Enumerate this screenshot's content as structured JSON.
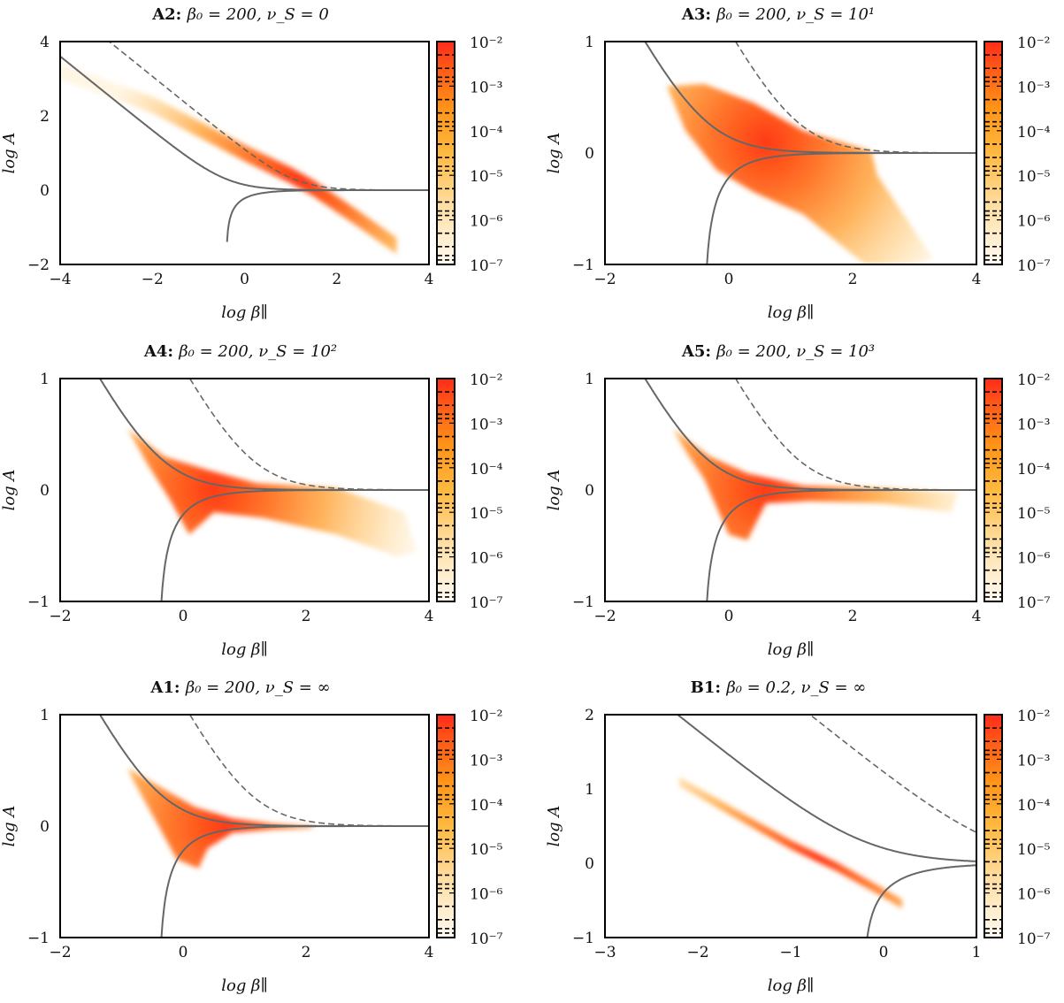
{
  "chart_data": [
    {
      "type": "heatmap",
      "panel": "A2",
      "title_bold": "A2:",
      "title_rest": "β₀ = 200,  ν_S = 0",
      "xlabel": "log β∥",
      "ylabel": "log A",
      "xlim": [
        -4,
        4
      ],
      "ylim": [
        -2,
        4
      ],
      "xticks": [
        -4,
        -2,
        0,
        2,
        4
      ],
      "yticks": [
        -2,
        0,
        2,
        4
      ],
      "beta0": 200,
      "color_scale": {
        "min_exp": -7,
        "max_exp": -2,
        "labels": [
          "10⁻²",
          "10⁻³",
          "10⁻⁴",
          "10⁻⁵",
          "10⁻⁶",
          "10⁻⁷"
        ]
      },
      "distribution": [
        {
          "x": [
            -4.0,
            -2.0,
            0.0,
            1.0,
            1.5,
            2.5,
            3.3
          ],
          "y": [
            3.2,
            2.3,
            1.0,
            0.4,
            0.05,
            -0.8,
            -1.5
          ],
          "halfwidth": 0.22,
          "peak_x": 1.2
        }
      ]
    },
    {
      "type": "heatmap",
      "panel": "A3",
      "title_bold": "A3:",
      "title_rest": "β₀ = 200,  ν_S = 10¹",
      "xlabel": "log β∥",
      "ylabel": "log A",
      "xlim": [
        -2,
        4
      ],
      "ylim": [
        -1,
        1
      ],
      "xticks": [
        -2,
        0,
        2,
        4
      ],
      "yticks": [
        -1,
        0,
        1
      ],
      "beta0": 200,
      "color_scale": {
        "min_exp": -7,
        "max_exp": -2,
        "labels": [
          "10⁻²",
          "10⁻³",
          "10⁻⁴",
          "10⁻⁵",
          "10⁻⁶",
          "10⁻⁷"
        ]
      },
      "distribution": [
        {
          "outline": [
            [
              -1.0,
              0.6
            ],
            [
              -0.4,
              0.62
            ],
            [
              0.4,
              0.45
            ],
            [
              1.2,
              0.2
            ],
            [
              2.3,
              0.02
            ],
            [
              2.4,
              -0.2
            ],
            [
              3.3,
              -0.95
            ],
            [
              3.0,
              -1.0
            ],
            [
              2.2,
              -1.0
            ],
            [
              1.2,
              -0.55
            ],
            [
              0.4,
              -0.35
            ],
            [
              -0.2,
              -0.15
            ],
            [
              -0.7,
              0.2
            ]
          ],
          "peak": [
            0.6,
            0.1
          ]
        }
      ]
    },
    {
      "type": "heatmap",
      "panel": "A4",
      "title_bold": "A4:",
      "title_rest": "β₀ = 200,  ν_S = 10²",
      "xlabel": "log β∥",
      "ylabel": "log A",
      "xlim": [
        -2,
        4
      ],
      "ylim": [
        -1,
        1
      ],
      "xticks": [
        -2,
        0,
        2,
        4
      ],
      "yticks": [
        -1,
        0,
        1
      ],
      "beta0": 200,
      "color_scale": {
        "min_exp": -7,
        "max_exp": -2,
        "labels": [
          "10⁻²",
          "10⁻³",
          "10⁻⁴",
          "10⁻⁵",
          "10⁻⁶",
          "10⁻⁷"
        ]
      },
      "distribution": [
        {
          "outline": [
            [
              -0.9,
              0.55
            ],
            [
              -0.3,
              0.3
            ],
            [
              0.4,
              0.18
            ],
            [
              1.2,
              0.06
            ],
            [
              2.5,
              0.02
            ],
            [
              3.6,
              -0.2
            ],
            [
              3.8,
              -0.55
            ],
            [
              3.5,
              -0.6
            ],
            [
              2.5,
              -0.4
            ],
            [
              1.3,
              -0.25
            ],
            [
              0.5,
              -0.2
            ],
            [
              0.1,
              -0.4
            ],
            [
              -0.2,
              -0.1
            ],
            [
              -0.6,
              0.25
            ]
          ],
          "peak": [
            0.5,
            0.0
          ]
        }
      ]
    },
    {
      "type": "heatmap",
      "panel": "A5",
      "title_bold": "A5:",
      "title_rest": "β₀ = 200,  ν_S = 10³",
      "xlabel": "log β∥",
      "ylabel": "log A",
      "xlim": [
        -2,
        4
      ],
      "ylim": [
        -1,
        1
      ],
      "xticks": [
        -2,
        0,
        2,
        4
      ],
      "yticks": [
        -1,
        0,
        1
      ],
      "beta0": 200,
      "color_scale": {
        "min_exp": -7,
        "max_exp": -2,
        "labels": [
          "10⁻²",
          "10⁻³",
          "10⁻⁴",
          "10⁻⁵",
          "10⁻⁶",
          "10⁻⁷"
        ]
      },
      "distribution": [
        {
          "outline": [
            [
              -0.9,
              0.55
            ],
            [
              -0.3,
              0.3
            ],
            [
              0.3,
              0.15
            ],
            [
              1.2,
              0.04
            ],
            [
              2.5,
              0.02
            ],
            [
              3.7,
              -0.02
            ],
            [
              3.6,
              -0.2
            ],
            [
              2.5,
              -0.12
            ],
            [
              1.3,
              -0.1
            ],
            [
              0.6,
              -0.12
            ],
            [
              0.3,
              -0.45
            ],
            [
              0.0,
              -0.4
            ],
            [
              -0.4,
              0.1
            ],
            [
              -0.7,
              0.35
            ]
          ],
          "peak": [
            0.6,
            0.0
          ]
        }
      ]
    },
    {
      "type": "heatmap",
      "panel": "A1",
      "title_bold": "A1:",
      "title_rest": "β₀ = 200,  ν_S = ∞",
      "xlabel": "log β∥",
      "ylabel": "log A",
      "xlim": [
        -2,
        4
      ],
      "ylim": [
        -1,
        1
      ],
      "xticks": [
        -2,
        0,
        2,
        4
      ],
      "yticks": [
        -1,
        0,
        1
      ],
      "beta0": 200,
      "color_scale": {
        "min_exp": -7,
        "max_exp": -2,
        "labels": [
          "10⁻²",
          "10⁻³",
          "10⁻⁴",
          "10⁻⁵",
          "10⁻⁶",
          "10⁻⁷"
        ]
      },
      "distribution": [
        {
          "outline": [
            [
              -0.9,
              0.52
            ],
            [
              -0.4,
              0.36
            ],
            [
              0.2,
              0.17
            ],
            [
              0.8,
              0.07
            ],
            [
              1.5,
              0.02
            ],
            [
              2.1,
              0.0
            ],
            [
              2.1,
              -0.02
            ],
            [
              1.5,
              -0.03
            ],
            [
              0.8,
              -0.06
            ],
            [
              0.4,
              -0.2
            ],
            [
              0.25,
              -0.38
            ],
            [
              -0.1,
              -0.3
            ],
            [
              -0.5,
              0.1
            ],
            [
              -0.8,
              0.4
            ]
          ],
          "peak": [
            0.7,
            0.0
          ]
        }
      ]
    },
    {
      "type": "heatmap",
      "panel": "B1",
      "title_bold": "B1:",
      "title_rest": "β₀ = 0.2,  ν_S = ∞",
      "xlabel": "log β∥",
      "ylabel": "log A",
      "xlim": [
        -3,
        1
      ],
      "ylim": [
        -1,
        2
      ],
      "xticks": [
        -3,
        -2,
        -1,
        0,
        1
      ],
      "yticks": [
        -1,
        0,
        1,
        2
      ],
      "beta0": 0.2,
      "color_scale": {
        "min_exp": -7,
        "max_exp": -2,
        "labels": [
          "10⁻²",
          "10⁻³",
          "10⁻⁴",
          "10⁻⁵",
          "10⁻⁶",
          "10⁻⁷"
        ]
      },
      "distribution": [
        {
          "x": [
            -2.2,
            -1.5,
            -1.0,
            -0.5,
            0.0,
            0.2
          ],
          "y": [
            1.1,
            0.6,
            0.25,
            -0.05,
            -0.4,
            -0.55
          ],
          "halfwidth": 0.06,
          "peak_x": -0.7
        }
      ]
    }
  ]
}
